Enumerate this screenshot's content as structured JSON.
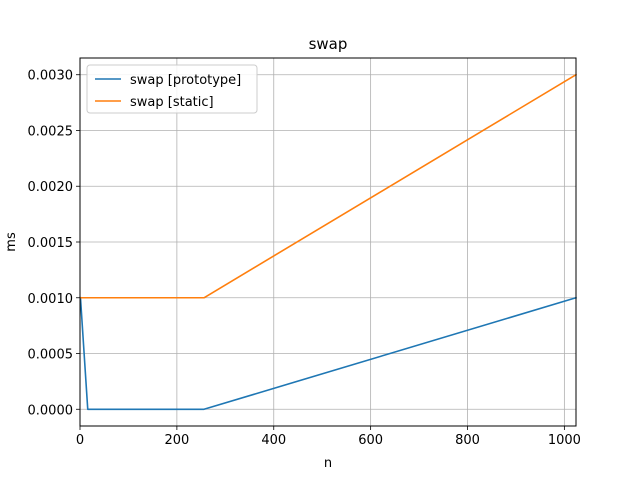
{
  "chart_data": {
    "type": "line",
    "title": "swap",
    "xlabel": "n",
    "ylabel": "ms",
    "xlim": [
      0,
      1024
    ],
    "ylim": [
      -0.00015,
      0.00315
    ],
    "grid": true,
    "legend_position": "top-left",
    "x_ticks": [
      0,
      200,
      400,
      600,
      800,
      1000
    ],
    "x_tick_labels": [
      "0",
      "200",
      "400",
      "600",
      "800",
      "1000"
    ],
    "y_ticks": [
      0,
      0.0005,
      0.001,
      0.0015,
      0.002,
      0.0025,
      0.003
    ],
    "y_tick_labels": [
      "0.0000",
      "0.0005",
      "0.0010",
      "0.0015",
      "0.0020",
      "0.0025",
      "0.0030"
    ],
    "series": [
      {
        "name": "swap [prototype]",
        "color": "#1f77b4",
        "x": [
          1,
          16,
          256,
          1024
        ],
        "y": [
          0.001,
          0.0,
          0.0,
          0.001
        ]
      },
      {
        "name": "swap [static]",
        "color": "#ff7f0e",
        "x": [
          1,
          16,
          256,
          1024
        ],
        "y": [
          0.001,
          0.001,
          0.001,
          0.003
        ]
      }
    ]
  }
}
